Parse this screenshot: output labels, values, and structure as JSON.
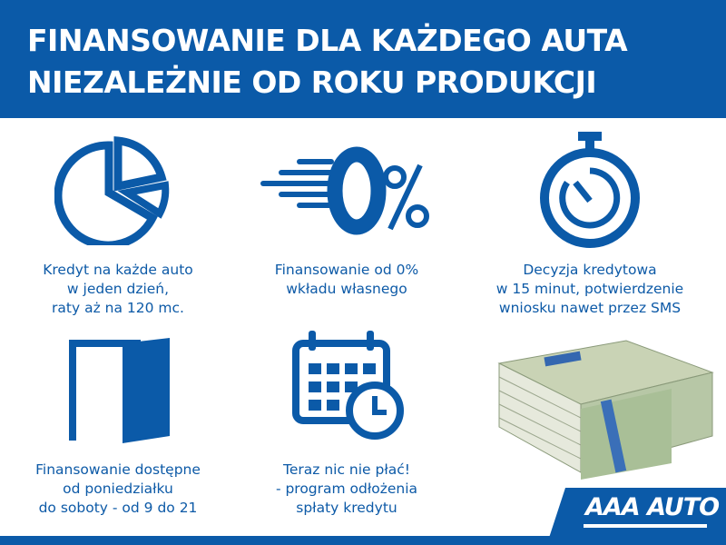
{
  "header": {
    "line1": "FINANSOWANIE DLA KAŻDEGO AUTA",
    "line2": "NIEZALEŻNIE OD ROKU PRODUKCJI"
  },
  "features": [
    {
      "icon": "pie-chart-icon",
      "lines": [
        "Kredyt na każde auto",
        "w jeden dzień,",
        "raty aż na 120 mc."
      ]
    },
    {
      "icon": "zero-percent-icon",
      "lines": [
        "Finansowanie od 0%",
        "wkładu własnego"
      ]
    },
    {
      "icon": "stopwatch-icon",
      "lines": [
        "Decyzja kredytowa",
        "w 15 minut, potwierdzenie",
        "wniosku nawet przez SMS"
      ]
    },
    {
      "icon": "open-door-icon",
      "lines": [
        "Finansowanie dostępne",
        "od poniedziałku",
        "do soboty - od 9 do 21"
      ]
    },
    {
      "icon": "calendar-clock-icon",
      "lines": [
        "Teraz nic nie płać!",
        "- program odłożenia",
        "spłaty kredytu"
      ]
    }
  ],
  "logo": {
    "text": "AAA AUTO"
  },
  "colors": {
    "brand_blue": "#0b5aa8",
    "white": "#ffffff"
  }
}
